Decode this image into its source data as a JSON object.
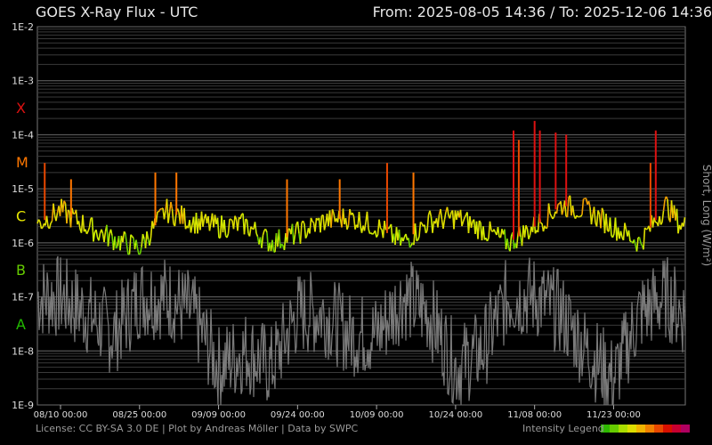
{
  "header": {
    "title": "GOES X-Ray Flux - UTC",
    "from_label": "From:",
    "from_value": "2025-08-05 14:36",
    "separator": "/",
    "to_label": "To:",
    "to_value": "2025-12-06 14:36"
  },
  "footer": {
    "license": "License: CC BY-SA 3.0 DE | Plot by Andreas Möller | Data by SWPC",
    "legend_label": "Intensity Legend",
    "legend_colors": [
      "#2eb800",
      "#66cc00",
      "#aadd00",
      "#dddd00",
      "#f0b400",
      "#f08000",
      "#e84800",
      "#d81000",
      "#c80030",
      "#b00060"
    ]
  },
  "chart_data": {
    "type": "line",
    "title": "GOES X-Ray Flux - UTC",
    "ylabel": "Short, Long (W/m²)",
    "y_scale": "log",
    "ylim": [
      1e-09,
      0.01
    ],
    "y_ticks": [
      "1E-9",
      "1E-8",
      "1E-7",
      "1E-6",
      "1E-5",
      "1E-4",
      "1E-3",
      "1E-2"
    ],
    "flare_classes": [
      {
        "label": "A",
        "color": "#22bb00"
      },
      {
        "label": "B",
        "color": "#66cc00"
      },
      {
        "label": "C",
        "color": "#e8e800"
      },
      {
        "label": "M",
        "color": "#ff7700"
      },
      {
        "label": "X",
        "color": "#dd1111"
      }
    ],
    "x_ticks": [
      "08/10 00:00",
      "08/25 00:00",
      "09/09 00:00",
      "09/24 00:00",
      "10/09 00:00",
      "10/24 00:00",
      "11/08 00:00",
      "11/23 00:00"
    ],
    "grid": true,
    "series": [
      {
        "name": "Long",
        "x": [
          "2025-08-05",
          "2025-08-10",
          "2025-08-15",
          "2025-08-20",
          "2025-08-25",
          "2025-08-30",
          "2025-09-04",
          "2025-09-09",
          "2025-09-14",
          "2025-09-19",
          "2025-09-24",
          "2025-09-29",
          "2025-10-04",
          "2025-10-09",
          "2025-10-14",
          "2025-10-19",
          "2025-10-24",
          "2025-10-29",
          "2025-11-03",
          "2025-11-08",
          "2025-11-13",
          "2025-11-18",
          "2025-11-23",
          "2025-11-28",
          "2025-12-03",
          "2025-12-06"
        ],
        "y": [
          2e-06,
          4e-06,
          2e-06,
          1.2e-06,
          8e-07,
          4e-06,
          2.5e-06,
          2e-06,
          2.2e-06,
          1e-06,
          1.5e-06,
          2.5e-06,
          3e-06,
          2e-06,
          1e-06,
          2.5e-06,
          3e-06,
          1.8e-06,
          1e-06,
          2e-06,
          5e-06,
          4e-06,
          2e-06,
          1e-06,
          5e-06,
          2e-06
        ],
        "peaks": [
          {
            "x": "2025-08-07",
            "y": 3e-05
          },
          {
            "x": "2025-08-12",
            "y": 1.5e-05
          },
          {
            "x": "2025-08-28",
            "y": 2e-05
          },
          {
            "x": "2025-09-01",
            "y": 2e-05
          },
          {
            "x": "2025-09-22",
            "y": 1.5e-05
          },
          {
            "x": "2025-10-02",
            "y": 1.5e-05
          },
          {
            "x": "2025-10-11",
            "y": 3e-05
          },
          {
            "x": "2025-10-16",
            "y": 2e-05
          },
          {
            "x": "2025-11-04",
            "y": 0.00012
          },
          {
            "x": "2025-11-05",
            "y": 8e-05
          },
          {
            "x": "2025-11-08",
            "y": 0.00018
          },
          {
            "x": "2025-11-09",
            "y": 0.00012
          },
          {
            "x": "2025-11-12",
            "y": 0.00011
          },
          {
            "x": "2025-11-14",
            "y": 0.0001
          },
          {
            "x": "2025-11-30",
            "y": 3e-05
          },
          {
            "x": "2025-12-01",
            "y": 0.00012
          }
        ]
      },
      {
        "name": "Short",
        "x": [
          "2025-08-05",
          "2025-08-10",
          "2025-08-15",
          "2025-08-20",
          "2025-08-25",
          "2025-08-30",
          "2025-09-04",
          "2025-09-09",
          "2025-09-14",
          "2025-09-19",
          "2025-09-24",
          "2025-09-29",
          "2025-10-04",
          "2025-10-09",
          "2025-10-14",
          "2025-10-19",
          "2025-10-24",
          "2025-10-29",
          "2025-11-03",
          "2025-11-08",
          "2025-11-13",
          "2025-11-18",
          "2025-11-23",
          "2025-11-28",
          "2025-12-03",
          "2025-12-06"
        ],
        "y": [
          1e-07,
          1e-07,
          5e-08,
          2e-08,
          1e-07,
          1e-07,
          5e-08,
          5e-09,
          1e-08,
          5e-09,
          5e-08,
          5e-08,
          2e-08,
          2e-08,
          1e-07,
          5e-08,
          5e-09,
          1e-08,
          1e-07,
          1e-07,
          5e-08,
          1e-08,
          3e-09,
          5e-08,
          1e-07,
          5e-08
        ]
      }
    ]
  }
}
